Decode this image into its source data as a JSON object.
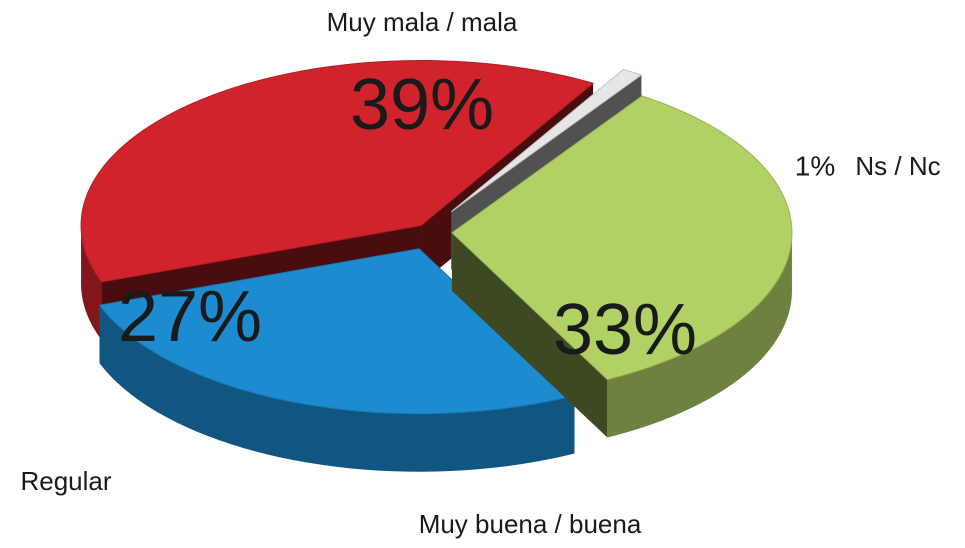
{
  "chart_data": {
    "type": "pie3d",
    "categories": [
      "Muy mala / mala",
      "Ns / Nc",
      "Muy buena / buena",
      "Regular"
    ],
    "values": [
      39,
      1,
      33,
      27
    ],
    "value_labels": [
      "39%",
      "1%",
      "33%",
      "27%"
    ],
    "colors": [
      "#d0232b",
      "#e6e6e6",
      "#b2d165",
      "#1c8bd0"
    ]
  }
}
